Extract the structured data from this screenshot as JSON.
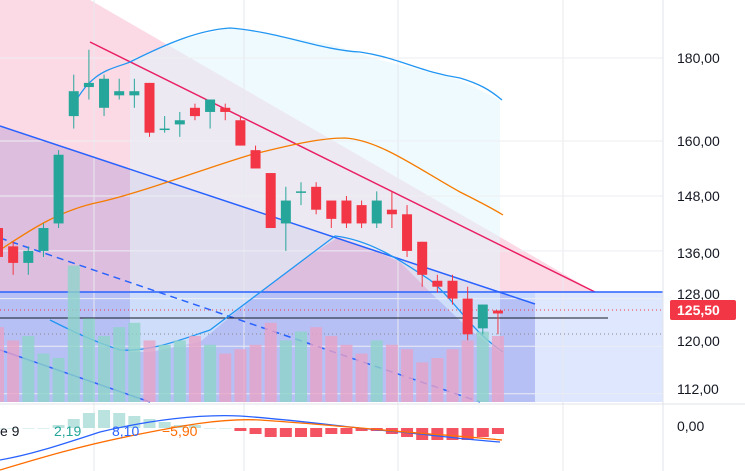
{
  "price_axis": {
    "labels": [
      "180,00",
      "160,00",
      "148,00",
      "136,00",
      "128,00",
      "120,00",
      "112,00"
    ],
    "current_price": "125,50",
    "current_price_color": "#f23645"
  },
  "indicator": {
    "name_fragment": "e 9",
    "values": [
      "2,19",
      "8,10",
      "−5,90"
    ],
    "value_colors": [
      "#26a69a",
      "#2962ff",
      "#ff6d00"
    ],
    "zero_label": "0,00"
  },
  "colors": {
    "up": "#26a69a",
    "down": "#f23645",
    "bollinger": "#2196f3",
    "basis": "#f57c00",
    "channel_upper": "#e91e63",
    "channel_lower": "#2962ff",
    "zone_blue": "#2962ff"
  },
  "chart_data": {
    "type": "candlestick",
    "y_ticks": [
      180,
      160,
      148,
      136,
      128,
      120,
      112
    ],
    "candles": [
      {
        "o": 141,
        "h": 142,
        "l": 133,
        "c": 135
      },
      {
        "o": 137,
        "h": 138,
        "l": 132,
        "c": 134
      },
      {
        "o": 134,
        "h": 137,
        "l": 132,
        "c": 136
      },
      {
        "o": 136,
        "h": 142,
        "l": 135,
        "c": 141
      },
      {
        "o": 142,
        "h": 158,
        "l": 141,
        "c": 157
      },
      {
        "o": 166,
        "h": 176,
        "l": 163,
        "c": 172
      },
      {
        "o": 173,
        "h": 182,
        "l": 170,
        "c": 174
      },
      {
        "o": 168,
        "h": 176,
        "l": 166,
        "c": 175
      },
      {
        "o": 171,
        "h": 175,
        "l": 170,
        "c": 172
      },
      {
        "o": 171,
        "h": 175,
        "l": 168,
        "c": 172
      },
      {
        "o": 174,
        "h": 174,
        "l": 161,
        "c": 162
      },
      {
        "o": 163,
        "h": 166,
        "l": 162,
        "c": 163
      },
      {
        "o": 164,
        "h": 167,
        "l": 161,
        "c": 165
      },
      {
        "o": 168,
        "h": 169,
        "l": 165,
        "c": 166
      },
      {
        "o": 167,
        "h": 170,
        "l": 163,
        "c": 170
      },
      {
        "o": 168,
        "h": 169,
        "l": 165,
        "c": 167
      },
      {
        "o": 165,
        "h": 166,
        "l": 159,
        "c": 159
      },
      {
        "o": 158,
        "h": 159,
        "l": 154,
        "c": 154
      },
      {
        "o": 153,
        "h": 153,
        "l": 141,
        "c": 141
      },
      {
        "o": 142,
        "h": 150,
        "l": 136,
        "c": 147
      },
      {
        "o": 149,
        "h": 151,
        "l": 146,
        "c": 149
      },
      {
        "o": 150,
        "h": 151,
        "l": 144,
        "c": 145
      },
      {
        "o": 147,
        "h": 147,
        "l": 141,
        "c": 143
      },
      {
        "o": 147,
        "h": 148,
        "l": 141,
        "c": 142
      },
      {
        "o": 146,
        "h": 147,
        "l": 141,
        "c": 142
      },
      {
        "o": 142,
        "h": 149,
        "l": 141,
        "c": 147
      },
      {
        "o": 145,
        "h": 149,
        "l": 141,
        "c": 144
      },
      {
        "o": 144,
        "h": 146,
        "l": 135,
        "c": 136
      },
      {
        "o": 138,
        "h": 138,
        "l": 130,
        "c": 132
      },
      {
        "o": 131,
        "h": 132,
        "l": 129,
        "c": 130
      },
      {
        "o": 131,
        "h": 132,
        "l": 127,
        "c": 128
      },
      {
        "o": 128,
        "h": 130,
        "l": 121,
        "c": 122
      },
      {
        "o": 123,
        "h": 127,
        "l": 122,
        "c": 127
      },
      {
        "o": 126,
        "h": 126,
        "l": 122,
        "c": 125.5
      }
    ],
    "volumes": [
      34,
      28,
      30,
      22,
      20,
      62,
      38,
      30,
      34,
      36,
      28,
      26,
      28,
      30,
      26,
      22,
      24,
      26,
      36,
      28,
      32,
      34,
      30,
      26,
      22,
      28,
      26,
      24,
      18,
      20,
      24,
      28,
      32,
      30
    ]
  }
}
